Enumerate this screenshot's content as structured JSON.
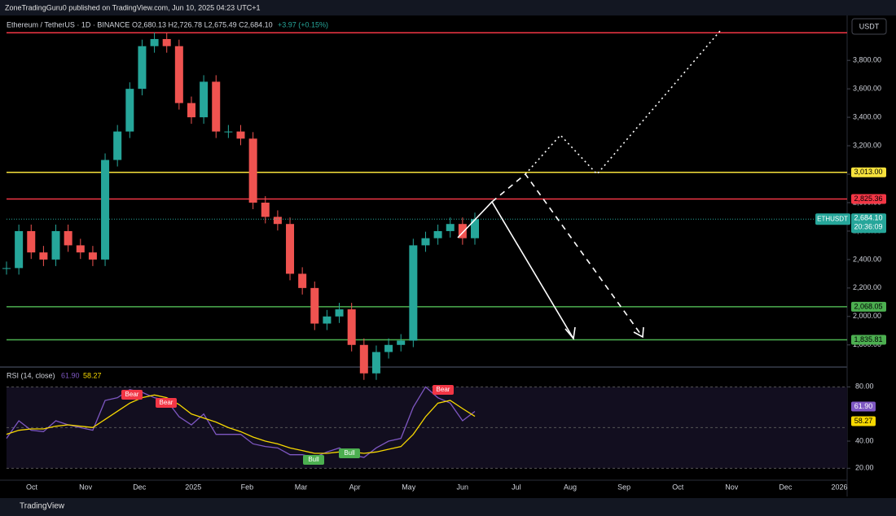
{
  "header": {
    "published": "ZoneTradingGuru0 published on TradingView.com, Jun 10, 2025 04:23 UTC+1",
    "currency": "USDT",
    "footer": "TradingView"
  },
  "chart_data": [
    {
      "type": "candlestick",
      "title": "Ethereum / TetherUS · 1D · BINANCE",
      "ohlc": "O2,680.13 H2,726.78 L2,675.49 C2,684.10",
      "change": "+3.97 (+0.15%)",
      "months": [
        "Oct",
        "Nov",
        "Dec",
        "2025",
        "Feb",
        "Mar",
        "Apr",
        "May",
        "Jun",
        "Jul",
        "Aug",
        "Sep",
        "Oct",
        "Nov",
        "Dec",
        "2026"
      ],
      "series": [
        {
          "name": "ETHUSDT",
          "values": [
            2340,
            2600,
            2450,
            2400,
            2600,
            2500,
            2450,
            2400,
            3100,
            3300,
            3600,
            3900,
            3950,
            3900,
            3500,
            3400,
            3650,
            3300,
            3300,
            3250,
            2800,
            2700,
            2650,
            2300,
            2200,
            1950,
            2000,
            2050,
            1800,
            1600,
            1750,
            1800,
            1830,
            2500,
            2550,
            2600,
            2650,
            2550,
            2684.1
          ]
        }
      ],
      "up_color": "#26a69a",
      "down_color": "#ef5350",
      "ylim": [
        1650,
        4110
      ],
      "yticks": [
        {
          "value": 1800,
          "label": "1,800.00"
        },
        {
          "value": 2000,
          "label": "2,000.00"
        },
        {
          "value": 2200,
          "label": "2,200.00"
        },
        {
          "value": 2400,
          "label": "2,400.00"
        },
        {
          "value": 2600,
          "label": "2,600.00"
        },
        {
          "value": 2800,
          "label": "2,800.00"
        },
        {
          "value": 3000,
          "label": "3,000.00"
        },
        {
          "value": 3200,
          "label": "3,200.00"
        },
        {
          "value": 3400,
          "label": "3,400.00"
        },
        {
          "value": 3600,
          "label": "3,600.00"
        },
        {
          "value": 3800,
          "label": "3,800.00"
        }
      ],
      "levels": [
        {
          "value": 3994,
          "color": "#f23645"
        },
        {
          "value": 3013,
          "label": "3,013.00",
          "color": "#f7e23c"
        },
        {
          "value": 2825.36,
          "label": "2,825.36",
          "color": "#f23645"
        },
        {
          "value": 2068.05,
          "label": "2,068.05",
          "color": "#4caf50"
        },
        {
          "value": 1835.81,
          "label": "1,835.81",
          "color": "#4caf50"
        }
      ],
      "last_price": {
        "name": "ETHUSDT",
        "value": 2684.1,
        "label": "2,684.10",
        "countdown": "20:36:09"
      }
    },
    {
      "type": "line",
      "title": "RSI (14, close)",
      "series": [
        {
          "name": "RSI",
          "color": "#7e57c2",
          "values": [
            42,
            55,
            48,
            47,
            55,
            52,
            50,
            48,
            70,
            72,
            78,
            76,
            72,
            70,
            58,
            52,
            60,
            45,
            45,
            45,
            38,
            36,
            35,
            30,
            30,
            28,
            32,
            35,
            30,
            28,
            35,
            40,
            42,
            65,
            80,
            72,
            68,
            55,
            61.9
          ],
          "last": {
            "value": 61.9,
            "label": "61.90"
          }
        },
        {
          "name": "MA",
          "color": "#f7d800",
          "values": [
            45,
            48,
            49,
            49,
            51,
            52,
            51,
            50,
            56,
            62,
            68,
            72,
            74,
            72,
            67,
            60,
            57,
            54,
            50,
            47,
            43,
            40,
            38,
            35,
            33,
            31,
            31,
            32,
            32,
            31,
            32,
            34,
            36,
            45,
            58,
            68,
            70,
            64,
            58.27
          ],
          "last": {
            "value": 58.27,
            "label": "58.27"
          }
        }
      ],
      "ylim": [
        10,
        94
      ],
      "yticks": [
        {
          "value": 80,
          "label": "80.00"
        },
        {
          "value": 40,
          "label": "40.00"
        },
        {
          "value": 20,
          "label": "20.00"
        }
      ],
      "bands": [
        80,
        50,
        20
      ],
      "signals": [
        "Bear",
        "Bear",
        "Bear",
        "Bull",
        "Bull"
      ]
    }
  ]
}
